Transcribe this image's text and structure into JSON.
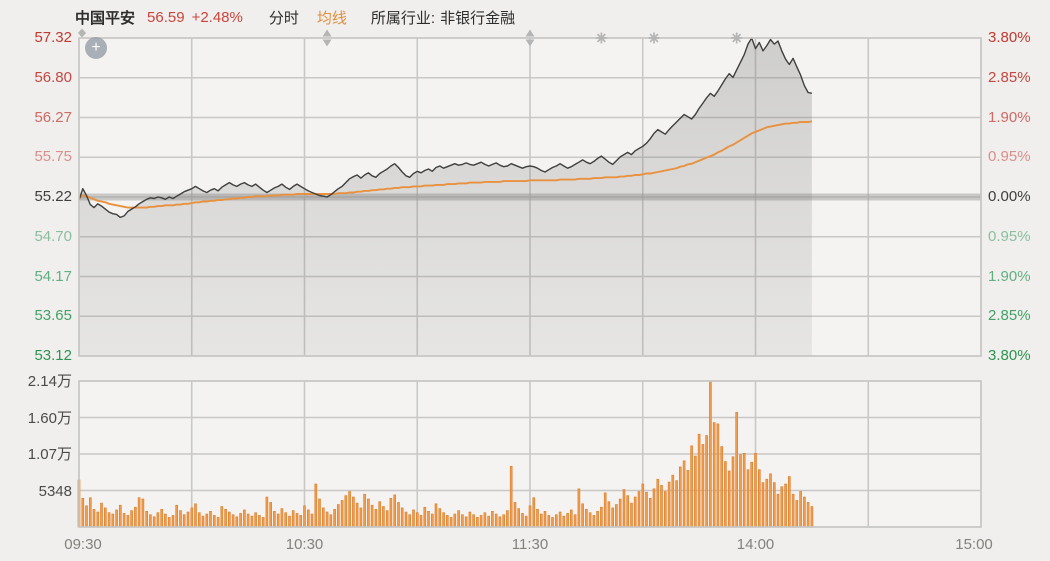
{
  "header": {
    "stock_name": "中国平安",
    "price": "56.59",
    "change_percent": "+2.48%",
    "mode_label": "分时",
    "avg_line_label": "均线",
    "industry_prefix": "所属行业:",
    "industry_name": "非银行金融"
  },
  "zoom_button": {
    "glyph": "+"
  },
  "colors": {
    "up_red": "#c9453d",
    "down_green": "#2d9351",
    "neutral_text": "#3e3e3e",
    "price_line": "#3f3f3f",
    "avg_line": "#e8913f",
    "volume_bar_fill": "#f09c4c",
    "volume_bar_edge": "#dd7e2a",
    "marker_gray": "#b5b5b5"
  },
  "chart_data": {
    "type": "line",
    "title": "中国平安 分时",
    "prev_close": 55.22,
    "current_price": 56.59,
    "change_percent": 2.48,
    "data_end_minute": 195,
    "x_axis": {
      "session_minutes": 240,
      "gridline_interval_minutes": 30,
      "ticks": [
        {
          "label": "09:30",
          "minute": 0
        },
        {
          "label": "10:30",
          "minute": 60
        },
        {
          "label": "11:30",
          "minute": 120
        },
        {
          "label": "14:00",
          "minute": 180
        },
        {
          "label": "15:00",
          "minute": 240
        }
      ]
    },
    "left_axis": [
      {
        "label": "57.32",
        "color": "#bf3a31"
      },
      {
        "label": "56.80",
        "color": "#c34842"
      },
      {
        "label": "56.27",
        "color": "#cf6a64"
      },
      {
        "label": "55.75",
        "color": "#d98f8b"
      },
      {
        "label": "55.22",
        "color": "#3e3e3e"
      },
      {
        "label": "54.70",
        "color": "#8abf9e"
      },
      {
        "label": "54.17",
        "color": "#62af82"
      },
      {
        "label": "53.65",
        "color": "#43a167"
      },
      {
        "label": "53.12",
        "color": "#2d9351"
      }
    ],
    "right_axis": [
      {
        "label": "3.80%",
        "color": "#bf3a31"
      },
      {
        "label": "2.85%",
        "color": "#c34842"
      },
      {
        "label": "1.90%",
        "color": "#cf6a64"
      },
      {
        "label": "0.95%",
        "color": "#d98f8b"
      },
      {
        "label": "0.00%",
        "color": "#3e3e3e"
      },
      {
        "label": "0.95%",
        "color": "#8abf9e"
      },
      {
        "label": "1.90%",
        "color": "#62af82"
      },
      {
        "label": "2.85%",
        "color": "#43a167"
      },
      {
        "label": "3.80%",
        "color": "#2d9351"
      }
    ],
    "volume_axis": [
      {
        "label": "2.14万",
        "value": 21392
      },
      {
        "label": "1.60万",
        "value": 16044
      },
      {
        "label": "1.07万",
        "value": 10696
      },
      {
        "label": "5348",
        "value": 5348
      }
    ],
    "markers": [
      {
        "type": "sparkle",
        "minute": 0
      },
      {
        "type": "arrows",
        "minute": 66
      },
      {
        "type": "arrows",
        "minute": 120
      },
      {
        "type": "star",
        "minute": 139
      },
      {
        "type": "star",
        "minute": 153
      },
      {
        "type": "star",
        "minute": 175
      }
    ],
    "series": [
      {
        "name": "price",
        "values": [
          55.18,
          55.33,
          55.24,
          55.12,
          55.08,
          55.13,
          55.1,
          55.06,
          55.02,
          55.0,
          54.99,
          54.95,
          54.97,
          55.03,
          55.06,
          55.09,
          55.13,
          55.16,
          55.19,
          55.21,
          55.2,
          55.22,
          55.21,
          55.19,
          55.22,
          55.2,
          55.23,
          55.26,
          55.29,
          55.31,
          55.33,
          55.36,
          55.33,
          55.3,
          55.28,
          55.31,
          55.33,
          55.3,
          55.35,
          55.38,
          55.41,
          55.38,
          55.36,
          55.39,
          55.41,
          55.38,
          55.36,
          55.39,
          55.35,
          55.31,
          55.28,
          55.31,
          55.34,
          55.36,
          55.39,
          55.35,
          55.32,
          55.36,
          55.39,
          55.36,
          55.33,
          55.3,
          55.28,
          55.26,
          55.24,
          55.23,
          55.22,
          55.25,
          55.29,
          55.33,
          55.36,
          55.41,
          55.46,
          55.49,
          55.51,
          55.47,
          55.51,
          55.54,
          55.5,
          55.48,
          55.53,
          55.56,
          55.59,
          55.63,
          55.66,
          55.61,
          55.55,
          55.5,
          55.48,
          55.53,
          55.56,
          55.54,
          55.57,
          55.59,
          55.56,
          55.61,
          55.63,
          55.6,
          55.62,
          55.64,
          55.66,
          55.64,
          55.65,
          55.67,
          55.65,
          55.64,
          55.66,
          55.68,
          55.65,
          55.63,
          55.65,
          55.67,
          55.64,
          55.62,
          55.63,
          55.66,
          55.64,
          55.62,
          55.6,
          55.62,
          55.63,
          55.62,
          55.6,
          55.57,
          55.55,
          55.58,
          55.61,
          55.63,
          55.66,
          55.63,
          55.6,
          55.62,
          55.65,
          55.68,
          55.71,
          55.68,
          55.66,
          55.69,
          55.73,
          55.76,
          55.72,
          55.68,
          55.65,
          55.7,
          55.75,
          55.78,
          55.81,
          55.78,
          55.83,
          55.86,
          55.89,
          55.93,
          55.99,
          56.06,
          56.11,
          56.08,
          56.05,
          56.11,
          56.16,
          56.21,
          56.26,
          56.31,
          56.28,
          56.25,
          56.31,
          56.39,
          56.46,
          56.53,
          56.59,
          56.55,
          56.62,
          56.7,
          56.78,
          56.85,
          56.8,
          56.9,
          57.0,
          57.1,
          57.24,
          57.32,
          57.18,
          57.26,
          57.15,
          57.22,
          57.3,
          57.24,
          57.28,
          57.15,
          57.04,
          56.97,
          57.05,
          56.94,
          56.83,
          56.69,
          56.6,
          56.59
        ]
      },
      {
        "name": "avg_price",
        "values": [
          55.2,
          55.24,
          55.23,
          55.21,
          55.19,
          55.17,
          55.16,
          55.15,
          55.13,
          55.12,
          55.11,
          55.1,
          55.09,
          55.08,
          55.08,
          55.08,
          55.08,
          55.08,
          55.08,
          55.09,
          55.09,
          55.1,
          55.1,
          55.11,
          55.11,
          55.11,
          55.12,
          55.12,
          55.13,
          55.13,
          55.14,
          55.15,
          55.15,
          55.16,
          55.16,
          55.17,
          55.17,
          55.18,
          55.18,
          55.19,
          55.19,
          55.2,
          55.2,
          55.21,
          55.21,
          55.22,
          55.22,
          55.23,
          55.23,
          55.23,
          55.23,
          55.24,
          55.24,
          55.24,
          55.25,
          55.25,
          55.25,
          55.25,
          55.26,
          55.26,
          55.26,
          55.26,
          55.26,
          55.26,
          55.26,
          55.26,
          55.26,
          55.26,
          55.26,
          55.27,
          55.27,
          55.27,
          55.28,
          55.28,
          55.29,
          55.29,
          55.3,
          55.3,
          55.31,
          55.31,
          55.32,
          55.32,
          55.33,
          55.33,
          55.34,
          55.34,
          55.35,
          55.35,
          55.35,
          55.36,
          55.36,
          55.36,
          55.37,
          55.37,
          55.37,
          55.38,
          55.38,
          55.38,
          55.39,
          55.39,
          55.39,
          55.4,
          55.4,
          55.4,
          55.41,
          55.41,
          55.41,
          55.41,
          55.42,
          55.42,
          55.42,
          55.42,
          55.42,
          55.43,
          55.43,
          55.43,
          55.43,
          55.43,
          55.43,
          55.43,
          55.44,
          55.44,
          55.44,
          55.44,
          55.44,
          55.44,
          55.44,
          55.44,
          55.45,
          55.45,
          55.45,
          55.45,
          55.45,
          55.46,
          55.46,
          55.46,
          55.46,
          55.47,
          55.47,
          55.47,
          55.48,
          55.48,
          55.48,
          55.48,
          55.49,
          55.49,
          55.5,
          55.5,
          55.51,
          55.51,
          55.52,
          55.53,
          55.53,
          55.54,
          55.55,
          55.56,
          55.57,
          55.58,
          55.59,
          55.6,
          55.62,
          55.63,
          55.65,
          55.66,
          55.68,
          55.7,
          55.72,
          55.74,
          55.76,
          55.78,
          55.81,
          55.83,
          55.86,
          55.89,
          55.91,
          55.94,
          55.97,
          56.0,
          56.03,
          56.06,
          56.08,
          56.1,
          56.12,
          56.14,
          56.15,
          56.16,
          56.17,
          56.18,
          56.19,
          56.19,
          56.2,
          56.2,
          56.21,
          56.21,
          56.21,
          56.22
        ]
      },
      {
        "name": "volume",
        "values": [
          6900,
          4200,
          3100,
          4300,
          2600,
          2200,
          3500,
          2800,
          2100,
          1900,
          2500,
          3200,
          2000,
          1700,
          2400,
          2900,
          4300,
          4100,
          2300,
          1800,
          1500,
          2100,
          2600,
          1900,
          1400,
          1700,
          3200,
          2400,
          1800,
          2200,
          2800,
          3400,
          2100,
          1600,
          1900,
          2300,
          1700,
          1400,
          3000,
          2600,
          2200,
          1800,
          1500,
          2000,
          2500,
          1900,
          1600,
          2100,
          1700,
          1400,
          4400,
          3600,
          2300,
          1900,
          2700,
          2100,
          1600,
          2400,
          2000,
          1700,
          3100,
          2500,
          1900,
          6300,
          4100,
          2800,
          2200,
          1800,
          2600,
          3300,
          3900,
          4600,
          5200,
          4400,
          3500,
          2800,
          4800,
          4100,
          3200,
          2600,
          3700,
          3000,
          2400,
          4200,
          4700,
          3600,
          2800,
          2200,
          1800,
          2500,
          2100,
          1700,
          2900,
          2300,
          1900,
          3400,
          2700,
          2100,
          1700,
          1400,
          1900,
          2400,
          1800,
          1500,
          2200,
          1800,
          1400,
          1700,
          2100,
          1600,
          2300,
          1900,
          1500,
          1800,
          2400,
          8900,
          3600,
          2700,
          2000,
          1600,
          3100,
          4300,
          2600,
          1900,
          2300,
          1700,
          1400,
          1800,
          2200,
          1600,
          2000,
          2500,
          1800,
          5600,
          3400,
          2600,
          2100,
          1700,
          2300,
          2900,
          5000,
          3700,
          2800,
          3300,
          4100,
          5500,
          4600,
          3500,
          4400,
          5200,
          6300,
          5100,
          4200,
          5600,
          7000,
          6100,
          5200,
          6600,
          7600,
          6800,
          8800,
          9700,
          8300,
          11900,
          10400,
          13600,
          12100,
          13400,
          21400,
          15300,
          15100,
          11800,
          9600,
          8200,
          10300,
          16800,
          10600,
          10800,
          8400,
          9500,
          10800,
          8400,
          6500,
          7000,
          7800,
          6500,
          4800,
          5900,
          6300,
          7400,
          4800,
          3900,
          5200,
          4400,
          3600,
          3000
        ]
      }
    ]
  }
}
